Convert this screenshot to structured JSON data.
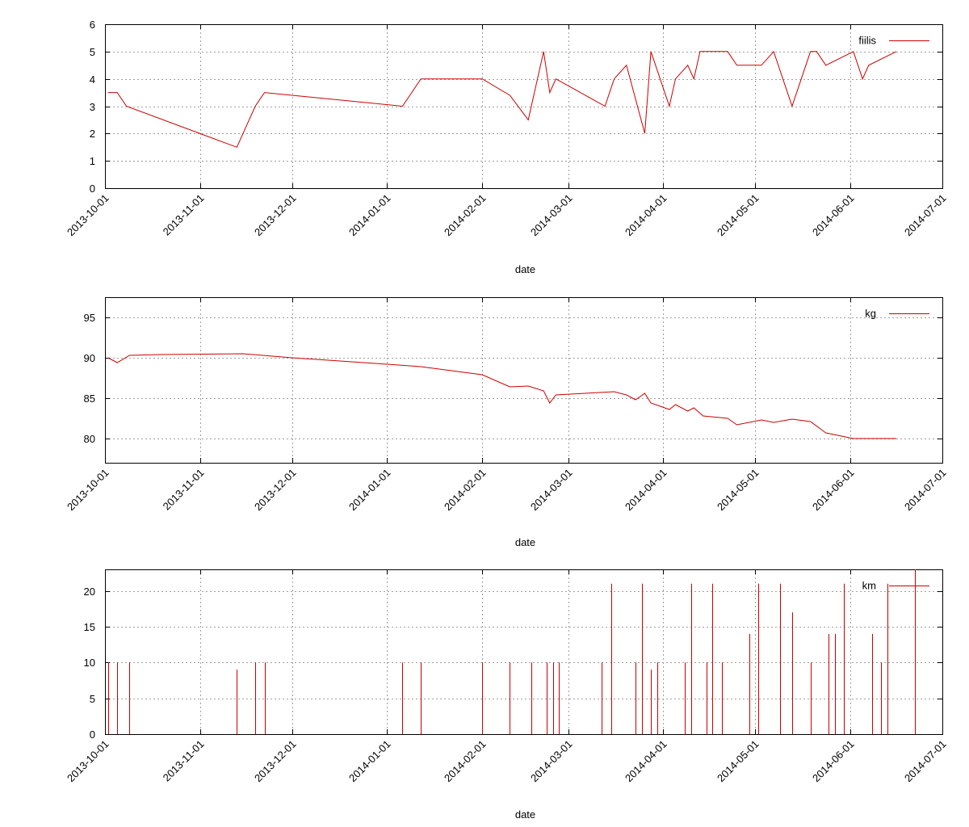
{
  "chart_data": [
    {
      "type": "line",
      "xlabel": "date",
      "ylabel": "",
      "x_ticks": [
        "2013-10-01",
        "2013-11-01",
        "2013-12-01",
        "2014-01-01",
        "2014-02-01",
        "2014-03-01",
        "2014-04-01",
        "2014-05-01",
        "2014-06-01",
        "2014-07-01"
      ],
      "ylim": [
        0,
        6
      ],
      "y_ticks": [
        0,
        1,
        2,
        3,
        4,
        5,
        6
      ],
      "xlim": [
        "2013-10-01",
        "2014-07-01"
      ],
      "grid": true,
      "legend_position": "top-right",
      "series": [
        {
          "name": "fiilis",
          "color": "#cc0000",
          "points": [
            [
              "2013-10-02",
              3.5
            ],
            [
              "2013-10-05",
              3.5
            ],
            [
              "2013-10-08",
              3.0
            ],
            [
              "2013-11-13",
              1.5
            ],
            [
              "2013-11-19",
              3.0
            ],
            [
              "2013-11-22",
              3.5
            ],
            [
              "2014-01-06",
              3.0
            ],
            [
              "2014-01-12",
              4.0
            ],
            [
              "2014-02-01",
              4.0
            ],
            [
              "2014-02-10",
              3.4
            ],
            [
              "2014-02-16",
              2.5
            ],
            [
              "2014-02-21",
              5.0
            ],
            [
              "2014-02-23",
              3.5
            ],
            [
              "2014-02-25",
              4.0
            ],
            [
              "2014-03-13",
              3.0
            ],
            [
              "2014-03-16",
              4.0
            ],
            [
              "2014-03-20",
              4.5
            ],
            [
              "2014-03-26",
              2.0
            ],
            [
              "2014-03-28",
              5.0
            ],
            [
              "2014-04-03",
              3.0
            ],
            [
              "2014-04-05",
              4.0
            ],
            [
              "2014-04-09",
              4.5
            ],
            [
              "2014-04-11",
              4.0
            ],
            [
              "2014-04-13",
              5.0
            ],
            [
              "2014-04-22",
              5.0
            ],
            [
              "2014-04-25",
              4.5
            ],
            [
              "2014-05-03",
              4.5
            ],
            [
              "2014-05-07",
              5.0
            ],
            [
              "2014-05-13",
              3.0
            ],
            [
              "2014-05-19",
              5.0
            ],
            [
              "2014-05-21",
              5.0
            ],
            [
              "2014-05-24",
              4.5
            ],
            [
              "2014-06-02",
              5.0
            ],
            [
              "2014-06-05",
              4.0
            ],
            [
              "2014-06-07",
              4.5
            ],
            [
              "2014-06-16",
              5.0
            ]
          ]
        }
      ]
    },
    {
      "type": "line",
      "xlabel": "date",
      "ylabel": "",
      "x_ticks": [
        "2013-10-01",
        "2013-11-01",
        "2013-12-01",
        "2014-01-01",
        "2014-02-01",
        "2014-03-01",
        "2014-04-01",
        "2014-05-01",
        "2014-06-01",
        "2014-07-01"
      ],
      "ylim": [
        77,
        97.5
      ],
      "y_ticks": [
        80,
        85,
        90,
        95
      ],
      "xlim": [
        "2013-10-01",
        "2014-07-01"
      ],
      "grid": true,
      "legend_position": "top-right",
      "series": [
        {
          "name": "kg",
          "color": "#cc0000",
          "points": [
            [
              "2013-10-02",
              90.0
            ],
            [
              "2013-10-05",
              89.4
            ],
            [
              "2013-10-09",
              90.3
            ],
            [
              "2013-10-19",
              90.4
            ],
            [
              "2013-11-15",
              90.5
            ],
            [
              "2013-12-01",
              90.0
            ],
            [
              "2014-01-01",
              89.2
            ],
            [
              "2014-01-12",
              88.9
            ],
            [
              "2014-02-01",
              87.9
            ],
            [
              "2014-02-10",
              86.4
            ],
            [
              "2014-02-16",
              86.5
            ],
            [
              "2014-02-21",
              85.9
            ],
            [
              "2014-02-23",
              84.4
            ],
            [
              "2014-02-25",
              85.4
            ],
            [
              "2014-03-16",
              85.8
            ],
            [
              "2014-03-20",
              85.4
            ],
            [
              "2014-03-23",
              84.8
            ],
            [
              "2014-03-26",
              85.6
            ],
            [
              "2014-03-28",
              84.4
            ],
            [
              "2014-04-03",
              83.6
            ],
            [
              "2014-04-05",
              84.2
            ],
            [
              "2014-04-09",
              83.4
            ],
            [
              "2014-04-11",
              83.8
            ],
            [
              "2014-04-14",
              82.8
            ],
            [
              "2014-04-22",
              82.5
            ],
            [
              "2014-04-25",
              81.7
            ],
            [
              "2014-05-03",
              82.3
            ],
            [
              "2014-05-07",
              82.0
            ],
            [
              "2014-05-13",
              82.4
            ],
            [
              "2014-05-19",
              82.1
            ],
            [
              "2014-05-24",
              80.7
            ],
            [
              "2014-06-02",
              80.0
            ],
            [
              "2014-06-16",
              80.0
            ]
          ]
        }
      ]
    },
    {
      "type": "bar",
      "xlabel": "date",
      "ylabel": "",
      "x_ticks": [
        "2013-10-01",
        "2013-11-01",
        "2013-12-01",
        "2014-01-01",
        "2014-02-01",
        "2014-03-01",
        "2014-04-01",
        "2014-05-01",
        "2014-06-01",
        "2014-07-01"
      ],
      "ylim": [
        0,
        23
      ],
      "y_ticks": [
        0,
        5,
        10,
        15,
        20
      ],
      "xlim": [
        "2013-10-01",
        "2014-07-01"
      ],
      "grid": true,
      "legend_position": "top-right",
      "series": [
        {
          "name": "km",
          "color": "#cc0000",
          "points": [
            [
              "2013-10-02",
              10
            ],
            [
              "2013-10-05",
              10
            ],
            [
              "2013-10-09",
              10
            ],
            [
              "2013-11-13",
              9
            ],
            [
              "2013-11-19",
              10
            ],
            [
              "2013-11-22",
              10
            ],
            [
              "2014-01-06",
              10
            ],
            [
              "2014-01-12",
              10
            ],
            [
              "2014-02-01",
              10
            ],
            [
              "2014-02-10",
              10
            ],
            [
              "2014-02-17",
              10
            ],
            [
              "2014-02-22",
              10
            ],
            [
              "2014-02-24",
              10
            ],
            [
              "2014-02-26",
              10
            ],
            [
              "2014-03-12",
              10
            ],
            [
              "2014-03-15",
              21
            ],
            [
              "2014-03-23",
              10
            ],
            [
              "2014-03-25",
              21
            ],
            [
              "2014-03-28",
              9
            ],
            [
              "2014-03-30",
              10
            ],
            [
              "2014-04-08",
              10
            ],
            [
              "2014-04-10",
              21
            ],
            [
              "2014-04-15",
              10
            ],
            [
              "2014-04-17",
              21
            ],
            [
              "2014-04-20",
              10
            ],
            [
              "2014-04-29",
              14
            ],
            [
              "2014-05-02",
              21
            ],
            [
              "2014-05-09",
              21
            ],
            [
              "2014-05-13",
              17
            ],
            [
              "2014-05-19",
              10
            ],
            [
              "2014-05-25",
              14
            ],
            [
              "2014-05-27",
              14
            ],
            [
              "2014-05-30",
              21
            ],
            [
              "2014-06-08",
              14
            ],
            [
              "2014-06-11",
              10
            ],
            [
              "2014-06-13",
              21
            ],
            [
              "2014-06-22",
              23
            ]
          ]
        }
      ]
    }
  ]
}
